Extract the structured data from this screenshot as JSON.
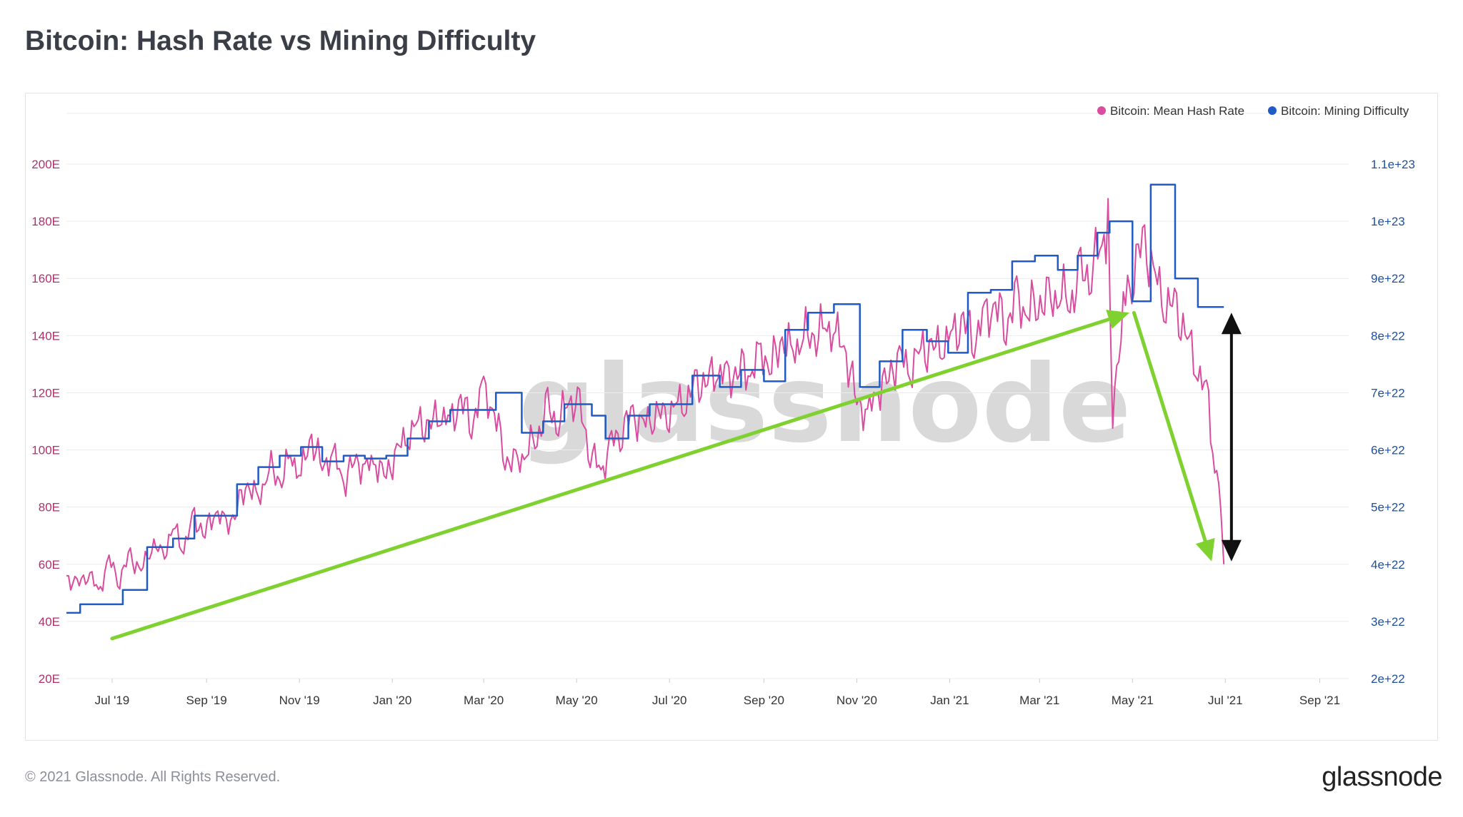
{
  "title": "Bitcoin: Hash Rate vs Mining Difficulty",
  "footer": "© 2021 Glassnode. All Rights Reserved.",
  "brand": "glassnode",
  "watermark": "glassnode",
  "colors": {
    "hash": "#d94ca0",
    "difficulty": "#1e5bc6",
    "arrow_green": "#7fd12f",
    "arrow_black": "#111111"
  },
  "chart_data": {
    "type": "line",
    "title": "Bitcoin: Hash Rate vs Mining Difficulty",
    "legend_position": "top-right",
    "grid": true,
    "x_range": [
      "2019-06-01",
      "2021-09-20"
    ],
    "x_ticks": [
      {
        "label": "Jul '19",
        "date": "2019-07-01"
      },
      {
        "label": "Sep '19",
        "date": "2019-09-01"
      },
      {
        "label": "Nov '19",
        "date": "2019-11-01"
      },
      {
        "label": "Jan '20",
        "date": "2020-01-01"
      },
      {
        "label": "Mar '20",
        "date": "2020-03-01"
      },
      {
        "label": "May '20",
        "date": "2020-05-01"
      },
      {
        "label": "Jul '20",
        "date": "2020-07-01"
      },
      {
        "label": "Sep '20",
        "date": "2020-09-01"
      },
      {
        "label": "Nov '20",
        "date": "2020-11-01"
      },
      {
        "label": "Jan '21",
        "date": "2021-01-01"
      },
      {
        "label": "Mar '21",
        "date": "2021-03-01"
      },
      {
        "label": "May '21",
        "date": "2021-05-01"
      },
      {
        "label": "Jul '21",
        "date": "2021-07-01"
      },
      {
        "label": "Sep '21",
        "date": "2021-09-01"
      }
    ],
    "y_left": {
      "ylim": [
        20,
        200
      ],
      "ticks": [
        20,
        40,
        60,
        80,
        100,
        120,
        140,
        160,
        180,
        200
      ],
      "tick_labels": [
        "20E",
        "40E",
        "60E",
        "80E",
        "100E",
        "120E",
        "140E",
        "160E",
        "180E",
        "200E"
      ]
    },
    "y_right": {
      "ylim": [
        2e+22,
        1.1e+23
      ],
      "ticks": [
        2e+22,
        3e+22,
        4e+22,
        5e+22,
        6e+22,
        7e+22,
        8e+22,
        9e+22,
        1e+23,
        1.1e+23
      ],
      "tick_labels": [
        "2e+22",
        "3e+22",
        "4e+22",
        "5e+22",
        "6e+22",
        "7e+22",
        "8e+22",
        "9e+22",
        "1e+23",
        "1.1e+23"
      ]
    },
    "series": [
      {
        "name": "Bitcoin: Mean Hash Rate",
        "axis": "left",
        "points": [
          [
            "2019-06-01",
            56
          ],
          [
            "2019-06-08",
            52
          ],
          [
            "2019-06-15",
            58
          ],
          [
            "2019-06-22",
            50
          ],
          [
            "2019-06-29",
            61
          ],
          [
            "2019-07-06",
            55
          ],
          [
            "2019-07-13",
            63
          ],
          [
            "2019-07-20",
            57
          ],
          [
            "2019-07-27",
            68
          ],
          [
            "2019-08-03",
            62
          ],
          [
            "2019-08-10",
            73
          ],
          [
            "2019-08-17",
            66
          ],
          [
            "2019-08-24",
            76
          ],
          [
            "2019-08-31",
            71
          ],
          [
            "2019-09-07",
            79
          ],
          [
            "2019-09-14",
            73
          ],
          [
            "2019-09-21",
            80
          ],
          [
            "2019-09-28",
            88
          ],
          [
            "2019-10-05",
            82
          ],
          [
            "2019-10-12",
            95
          ],
          [
            "2019-10-19",
            88
          ],
          [
            "2019-10-26",
            98
          ],
          [
            "2019-11-02",
            92
          ],
          [
            "2019-11-09",
            104
          ],
          [
            "2019-11-16",
            94
          ],
          [
            "2019-11-23",
            99
          ],
          [
            "2019-11-30",
            88
          ],
          [
            "2019-12-07",
            97
          ],
          [
            "2019-12-14",
            93
          ],
          [
            "2019-12-21",
            96
          ],
          [
            "2019-12-28",
            91
          ],
          [
            "2020-01-04",
            99
          ],
          [
            "2020-01-11",
            105
          ],
          [
            "2020-01-18",
            110
          ],
          [
            "2020-01-25",
            107
          ],
          [
            "2020-02-01",
            114
          ],
          [
            "2020-02-08",
            109
          ],
          [
            "2020-02-15",
            117
          ],
          [
            "2020-02-22",
            110
          ],
          [
            "2020-03-01",
            120
          ],
          [
            "2020-03-08",
            113
          ],
          [
            "2020-03-15",
            98
          ],
          [
            "2020-03-22",
            94
          ],
          [
            "2020-03-29",
            100
          ],
          [
            "2020-04-05",
            105
          ],
          [
            "2020-04-12",
            114
          ],
          [
            "2020-04-19",
            110
          ],
          [
            "2020-04-26",
            118
          ],
          [
            "2020-05-03",
            114
          ],
          [
            "2020-05-10",
            100
          ],
          [
            "2020-05-17",
            92
          ],
          [
            "2020-05-24",
            102
          ],
          [
            "2020-05-31",
            108
          ],
          [
            "2020-06-07",
            112
          ],
          [
            "2020-06-14",
            108
          ],
          [
            "2020-06-21",
            114
          ],
          [
            "2020-06-28",
            110
          ],
          [
            "2020-07-05",
            116
          ],
          [
            "2020-07-12",
            118
          ],
          [
            "2020-07-19",
            122
          ],
          [
            "2020-07-26",
            125
          ],
          [
            "2020-08-02",
            128
          ],
          [
            "2020-08-09",
            124
          ],
          [
            "2020-08-16",
            130
          ],
          [
            "2020-08-23",
            126
          ],
          [
            "2020-08-30",
            134
          ],
          [
            "2020-09-06",
            130
          ],
          [
            "2020-09-13",
            138
          ],
          [
            "2020-09-20",
            134
          ],
          [
            "2020-09-27",
            141
          ],
          [
            "2020-10-04",
            138
          ],
          [
            "2020-10-11",
            144
          ],
          [
            "2020-10-18",
            141
          ],
          [
            "2020-10-25",
            133
          ],
          [
            "2020-11-01",
            118
          ],
          [
            "2020-11-08",
            112
          ],
          [
            "2020-11-15",
            121
          ],
          [
            "2020-11-22",
            126
          ],
          [
            "2020-11-29",
            132
          ],
          [
            "2020-12-06",
            128
          ],
          [
            "2020-12-13",
            136
          ],
          [
            "2020-12-20",
            134
          ],
          [
            "2020-12-27",
            138
          ],
          [
            "2021-01-03",
            140
          ],
          [
            "2021-01-10",
            144
          ],
          [
            "2021-01-17",
            140
          ],
          [
            "2021-01-24",
            146
          ],
          [
            "2021-01-31",
            150
          ],
          [
            "2021-02-07",
            145
          ],
          [
            "2021-02-14",
            152
          ],
          [
            "2021-02-21",
            148
          ],
          [
            "2021-02-28",
            153
          ],
          [
            "2021-03-07",
            150
          ],
          [
            "2021-03-14",
            156
          ],
          [
            "2021-03-21",
            152
          ],
          [
            "2021-03-28",
            160
          ],
          [
            "2021-04-04",
            164
          ],
          [
            "2021-04-11",
            172
          ],
          [
            "2021-04-15",
            178
          ],
          [
            "2021-04-18",
            115
          ],
          [
            "2021-04-22",
            128
          ],
          [
            "2021-04-25",
            150
          ],
          [
            "2021-05-02",
            165
          ],
          [
            "2021-05-09",
            172
          ],
          [
            "2021-05-16",
            160
          ],
          [
            "2021-05-23",
            152
          ],
          [
            "2021-05-30",
            148
          ],
          [
            "2021-06-06",
            140
          ],
          [
            "2021-06-13",
            128
          ],
          [
            "2021-06-20",
            116
          ],
          [
            "2021-06-24",
            94
          ],
          [
            "2021-06-28",
            80
          ],
          [
            "2021-06-30",
            60
          ]
        ]
      },
      {
        "name": "Bitcoin: Mining Difficulty",
        "axis": "right",
        "points": [
          [
            "2019-06-01",
            3.15e+22
          ],
          [
            "2019-06-10",
            3.15e+22
          ],
          [
            "2019-06-10",
            3.3e+22
          ],
          [
            "2019-07-08",
            3.3e+22
          ],
          [
            "2019-07-08",
            3.55e+22
          ],
          [
            "2019-07-24",
            3.55e+22
          ],
          [
            "2019-07-24",
            4.3e+22
          ],
          [
            "2019-08-10",
            4.3e+22
          ],
          [
            "2019-08-10",
            4.45e+22
          ],
          [
            "2019-08-24",
            4.45e+22
          ],
          [
            "2019-08-24",
            4.85e+22
          ],
          [
            "2019-09-07",
            4.85e+22
          ],
          [
            "2019-09-07",
            4.85e+22
          ],
          [
            "2019-09-21",
            4.85e+22
          ],
          [
            "2019-09-21",
            5.4e+22
          ],
          [
            "2019-10-05",
            5.4e+22
          ],
          [
            "2019-10-05",
            5.7e+22
          ],
          [
            "2019-10-19",
            5.7e+22
          ],
          [
            "2019-10-19",
            5.9e+22
          ],
          [
            "2019-11-02",
            5.9e+22
          ],
          [
            "2019-11-02",
            6.05e+22
          ],
          [
            "2019-11-16",
            6.05e+22
          ],
          [
            "2019-11-16",
            5.8e+22
          ],
          [
            "2019-11-30",
            5.8e+22
          ],
          [
            "2019-11-30",
            5.9e+22
          ],
          [
            "2019-12-14",
            5.9e+22
          ],
          [
            "2019-12-14",
            5.85e+22
          ],
          [
            "2019-12-28",
            5.85e+22
          ],
          [
            "2019-12-28",
            5.9e+22
          ],
          [
            "2020-01-11",
            5.9e+22
          ],
          [
            "2020-01-11",
            6.2e+22
          ],
          [
            "2020-01-25",
            6.2e+22
          ],
          [
            "2020-01-25",
            6.5e+22
          ],
          [
            "2020-02-08",
            6.5e+22
          ],
          [
            "2020-02-08",
            6.7e+22
          ],
          [
            "2020-02-22",
            6.7e+22
          ],
          [
            "2020-02-22",
            6.7e+22
          ],
          [
            "2020-03-09",
            6.7e+22
          ],
          [
            "2020-03-09",
            7e+22
          ],
          [
            "2020-03-26",
            7e+22
          ],
          [
            "2020-03-26",
            6.3e+22
          ],
          [
            "2020-04-09",
            6.3e+22
          ],
          [
            "2020-04-09",
            6.5e+22
          ],
          [
            "2020-04-23",
            6.5e+22
          ],
          [
            "2020-04-23",
            6.8e+22
          ],
          [
            "2020-05-11",
            6.8e+22
          ],
          [
            "2020-05-11",
            6.6e+22
          ],
          [
            "2020-05-20",
            6.6e+22
          ],
          [
            "2020-05-20",
            6.2e+22
          ],
          [
            "2020-06-04",
            6.2e+22
          ],
          [
            "2020-06-04",
            6.6e+22
          ],
          [
            "2020-06-18",
            6.6e+22
          ],
          [
            "2020-06-18",
            6.8e+22
          ],
          [
            "2020-07-16",
            6.8e+22
          ],
          [
            "2020-07-16",
            7.3e+22
          ],
          [
            "2020-08-03",
            7.3e+22
          ],
          [
            "2020-08-03",
            7.1e+22
          ],
          [
            "2020-08-17",
            7.1e+22
          ],
          [
            "2020-08-17",
            7.4e+22
          ],
          [
            "2020-09-01",
            7.4e+22
          ],
          [
            "2020-09-01",
            7.2e+22
          ],
          [
            "2020-09-15",
            7.2e+22
          ],
          [
            "2020-09-15",
            8.1e+22
          ],
          [
            "2020-09-30",
            8.1e+22
          ],
          [
            "2020-09-30",
            8.4e+22
          ],
          [
            "2020-10-17",
            8.4e+22
          ],
          [
            "2020-10-17",
            8.55e+22
          ],
          [
            "2020-11-03",
            8.55e+22
          ],
          [
            "2020-11-03",
            7.1e+22
          ],
          [
            "2020-11-16",
            7.1e+22
          ],
          [
            "2020-11-16",
            7.55e+22
          ],
          [
            "2020-12-01",
            7.55e+22
          ],
          [
            "2020-12-01",
            8.1e+22
          ],
          [
            "2020-12-17",
            8.1e+22
          ],
          [
            "2020-12-17",
            7.9e+22
          ],
          [
            "2020-12-31",
            7.9e+22
          ],
          [
            "2020-12-31",
            7.7e+22
          ],
          [
            "2021-01-13",
            7.7e+22
          ],
          [
            "2021-01-13",
            8.75e+22
          ],
          [
            "2021-01-28",
            8.75e+22
          ],
          [
            "2021-01-28",
            8.8e+22
          ],
          [
            "2021-02-11",
            8.8e+22
          ],
          [
            "2021-02-11",
            9.3e+22
          ],
          [
            "2021-02-26",
            9.3e+22
          ],
          [
            "2021-02-26",
            9.4e+22
          ],
          [
            "2021-03-13",
            9.4e+22
          ],
          [
            "2021-03-13",
            9.15e+22
          ],
          [
            "2021-03-26",
            9.15e+22
          ],
          [
            "2021-03-26",
            9.4e+22
          ],
          [
            "2021-04-08",
            9.4e+22
          ],
          [
            "2021-04-08",
            9.8e+22
          ],
          [
            "2021-04-16",
            9.8e+22
          ],
          [
            "2021-04-16",
            1e+23
          ],
          [
            "2021-05-01",
            1e+23
          ],
          [
            "2021-05-01",
            8.6e+22
          ],
          [
            "2021-05-13",
            8.6e+22
          ],
          [
            "2021-05-13",
            1.064e+23
          ],
          [
            "2021-05-29",
            1.064e+23
          ],
          [
            "2021-05-29",
            9e+22
          ],
          [
            "2021-06-13",
            9e+22
          ],
          [
            "2021-06-13",
            8.5e+22
          ],
          [
            "2021-06-30",
            8.5e+22
          ]
        ]
      }
    ],
    "annotations": [
      {
        "type": "arrow",
        "color": "green",
        "from": [
          "2019-07-01",
          34
        ],
        "to": [
          "2021-04-29",
          148
        ]
      },
      {
        "type": "arrow",
        "color": "green",
        "from": [
          "2021-05-02",
          148
        ],
        "to": [
          "2021-06-22",
          61
        ]
      },
      {
        "type": "double-arrow",
        "color": "black",
        "x": "2021-07-05",
        "from": 61,
        "to": 148
      }
    ]
  }
}
